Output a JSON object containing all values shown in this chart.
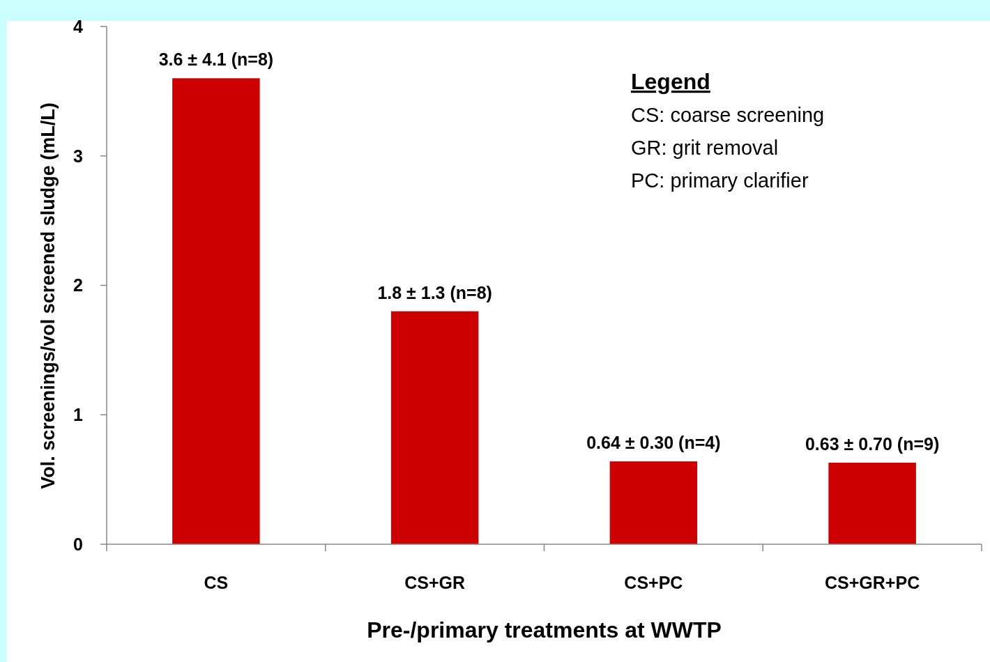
{
  "chart_data": {
    "type": "bar",
    "categories": [
      "CS",
      "CS+GR",
      "CS+PC",
      "CS+GR+PC"
    ],
    "values": [
      3.6,
      1.8,
      0.64,
      0.63
    ],
    "color": "#cc0000",
    "value_labels": [
      "3.6 ± 4.1 (n=8)",
      "1.8 ± 1.3 (n=8)",
      "0.64 ± 0.30 (n=4)",
      "0.63 ± 0.70 (n=9)"
    ],
    "xlabel": "Pre-/primary treatments at WWTP",
    "ylabel": "Vol. screenings/vol screened sludge (mL/L)",
    "ylim": [
      0,
      4
    ],
    "yticks": [
      0,
      1,
      2,
      3,
      4
    ],
    "annotations": [
      "Legend",
      "CS: coarse screening",
      "GR: grit removal",
      "PC: primary clarifier"
    ]
  }
}
